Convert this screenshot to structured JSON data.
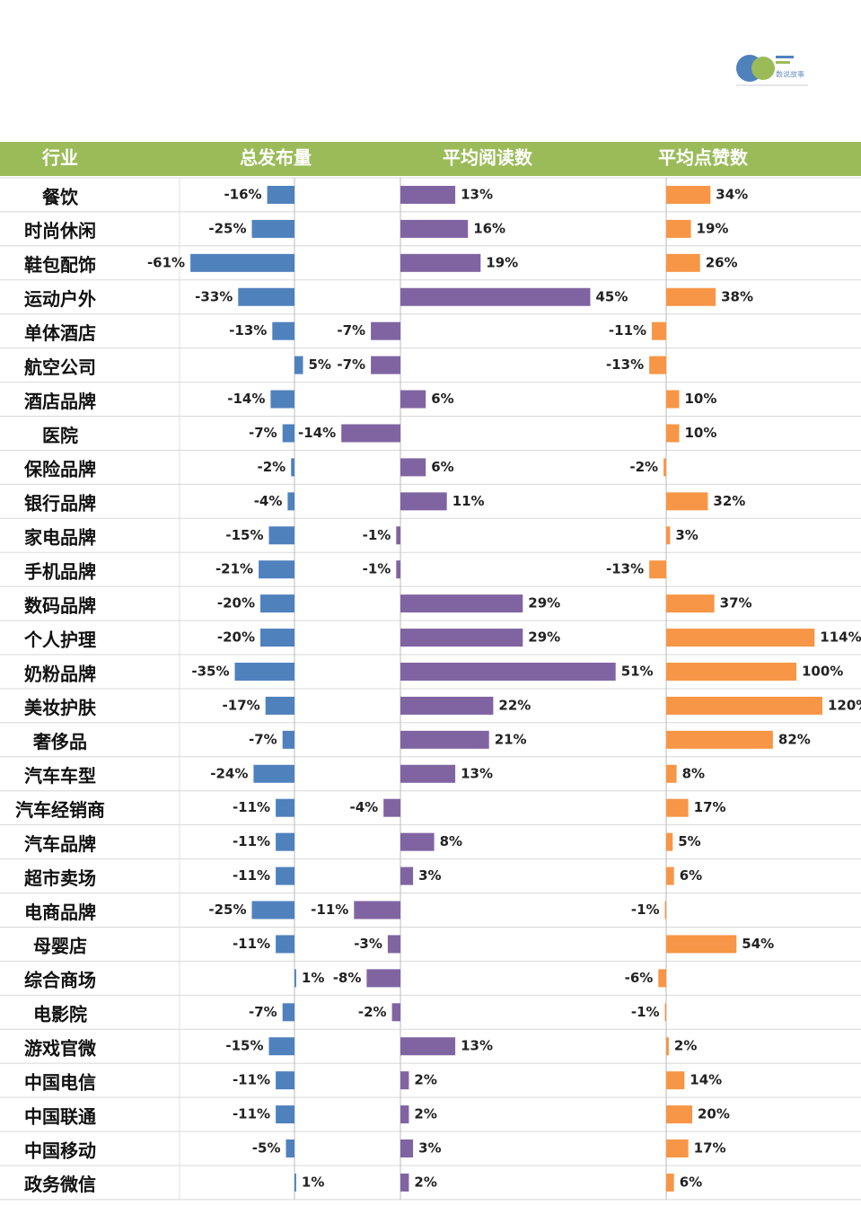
{
  "logo": {
    "text": "数说故事"
  },
  "chart_data": {
    "type": "bar",
    "orientation": "horizontal",
    "category_header": "行业",
    "categories": [
      "餐饮",
      "时尚休闲",
      "鞋包配饰",
      "运动户外",
      "单体酒店",
      "航空公司",
      "酒店品牌",
      "医院",
      "保险品牌",
      "银行品牌",
      "家电品牌",
      "手机品牌",
      "数码品牌",
      "个人护理",
      "奶粉品牌",
      "美妆护肤",
      "奢侈品",
      "汽车车型",
      "汽车经销商",
      "汽车品牌",
      "超市卖场",
      "电商品牌",
      "母婴店",
      "综合商场",
      "电影院",
      "游戏官微",
      "中国电信",
      "中国联通",
      "中国移动",
      "政务微信"
    ],
    "series": [
      {
        "name": "总发布量",
        "color": "#4f81bd",
        "values": [
          -16,
          -25,
          -61,
          -33,
          -13,
          5,
          -14,
          -7,
          -2,
          -4,
          -15,
          -21,
          -20,
          -20,
          -35,
          -17,
          -7,
          -24,
          -11,
          -11,
          -11,
          -25,
          -11,
          1,
          -7,
          -15,
          -11,
          -11,
          -5,
          1
        ],
        "value_labels": [
          "-16%",
          "-25%",
          "-61%",
          "-33%",
          "-13%",
          "5%",
          "-14%",
          "-7%",
          "-2%",
          "-4%",
          "-15%",
          "-21%",
          "-20%",
          "-20%",
          "-35%",
          "-17%",
          "-7%",
          "-24%",
          "-11%",
          "-11%",
          "-11%",
          "-25%",
          "-11%",
          "1%",
          "-7%",
          "-15%",
          "-11%",
          "-11%",
          "-5%",
          "1%"
        ]
      },
      {
        "name": "平均阅读数",
        "color": "#8064a2",
        "values": [
          13,
          16,
          19,
          45,
          -7,
          -7,
          6,
          -14,
          6,
          11,
          -1,
          -1,
          29,
          29,
          51,
          22,
          21,
          13,
          -4,
          8,
          3,
          -11,
          -3,
          -8,
          -2,
          13,
          2,
          2,
          3,
          2
        ],
        "value_labels": [
          "13%",
          "16%",
          "19%",
          "45%",
          "-7%",
          "-7%",
          "6%",
          "-14%",
          "6%",
          "11%",
          "-1%",
          "-1%",
          "29%",
          "29%",
          "51%",
          "22%",
          "21%",
          "13%",
          "-4%",
          "8%",
          "3%",
          "-11%",
          "-3%",
          "-8%",
          "-2%",
          "13%",
          "2%",
          "2%",
          "3%",
          "2%"
        ]
      },
      {
        "name": "平均点赞数",
        "color": "#f79646",
        "values": [
          34,
          19,
          26,
          38,
          -11,
          -13,
          10,
          10,
          -2,
          32,
          3,
          -13,
          37,
          114,
          100,
          120,
          82,
          8,
          17,
          5,
          6,
          -1,
          54,
          -6,
          -1,
          2,
          14,
          20,
          17,
          6
        ],
        "value_labels": [
          "34%",
          "19%",
          "26%",
          "38%",
          "-11%",
          "-13%",
          "10%",
          "10%",
          "-2%",
          "32%",
          "3%",
          "-13%",
          "37%",
          "114%",
          "100%",
          "120%",
          "82%",
          "8%",
          "17%",
          "5%",
          "6%",
          "-1%",
          "54%",
          "-6%",
          "-1%",
          "2%",
          "14%",
          "20%",
          "17%",
          "6%"
        ]
      }
    ]
  }
}
